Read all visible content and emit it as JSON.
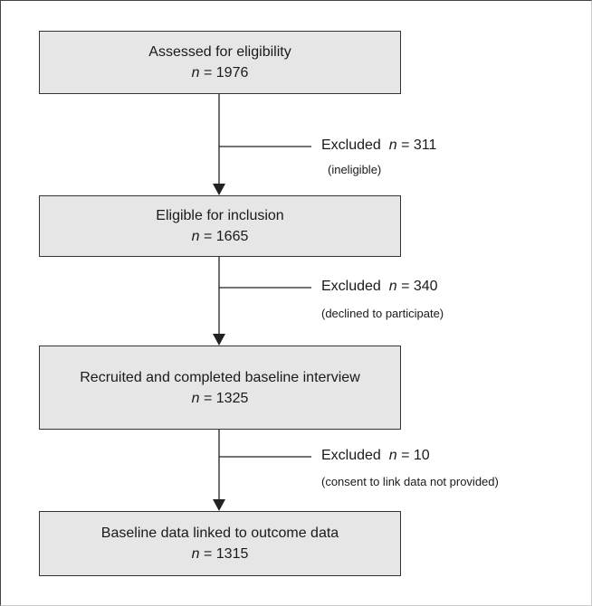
{
  "nodes": [
    {
      "label": "Assessed for eligibility",
      "symbol": "n",
      "count": "= 1976"
    },
    {
      "label": "Eligible for inclusion",
      "symbol": "n",
      "count": "= 1665"
    },
    {
      "label": "Recruited and completed baseline interview",
      "symbol": "n",
      "count": "= 1325"
    },
    {
      "label": "Baseline data linked to outcome data",
      "symbol": "n",
      "count": "= 1315"
    }
  ],
  "exclusions": [
    {
      "label": "Excluded",
      "symbol": "n",
      "count": "= 311",
      "reason": "(ineligible)"
    },
    {
      "label": "Excluded",
      "symbol": "n",
      "count": "= 340",
      "reason": "(declined to participate)"
    },
    {
      "label": "Excluded",
      "symbol": "n",
      "count": "= 10",
      "reason": "(consent to link data not provided)"
    }
  ]
}
